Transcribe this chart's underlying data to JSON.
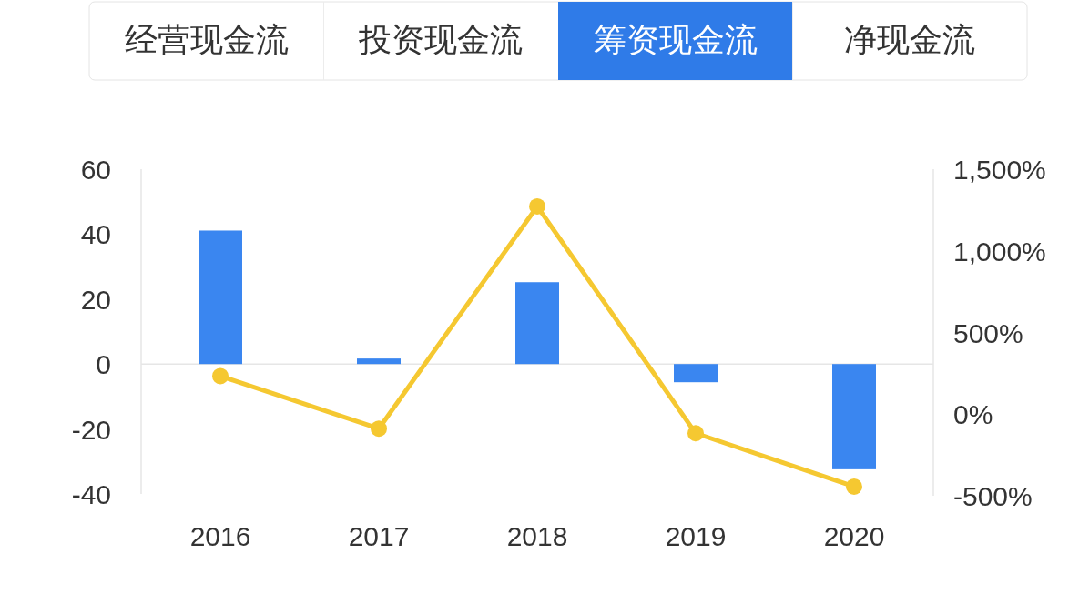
{
  "chart_data": {
    "type": "bar",
    "title": "筹资现金流",
    "annotations": [
      "经营现金流",
      "投资现金流",
      "净现金流"
    ],
    "categories": [
      "2016",
      "2017",
      "2018",
      "2019",
      "2020"
    ],
    "series": [
      {
        "color": "#3a86f0",
        "values": [
          41.1,
          1.7,
          25.2,
          -5.6,
          -32.4
        ]
      },
      {
        "type": "line",
        "axis": "y2",
        "color": "#f5c831",
        "marker": "circle",
        "values": [
          233,
          -89,
          1272,
          -117,
          -444
        ]
      }
    ],
    "ylim": [
      -40,
      60
    ],
    "yticks": [
      -40,
      -20,
      0,
      20,
      40,
      60
    ],
    "y2lim": [
      -500,
      1500
    ],
    "y2ticks": [
      {
        "value": -500,
        "label": "-500%"
      },
      {
        "value": 0,
        "label": "0%"
      },
      {
        "value": 500,
        "label": "500%"
      },
      {
        "value": 1000,
        "label": "1,000%"
      },
      {
        "value": 1500,
        "label": "1,500%"
      }
    ],
    "ref_lines": [
      {
        "axis": "y",
        "value": 0,
        "color": "#e6e6e6"
      }
    ],
    "grid": false
  }
}
